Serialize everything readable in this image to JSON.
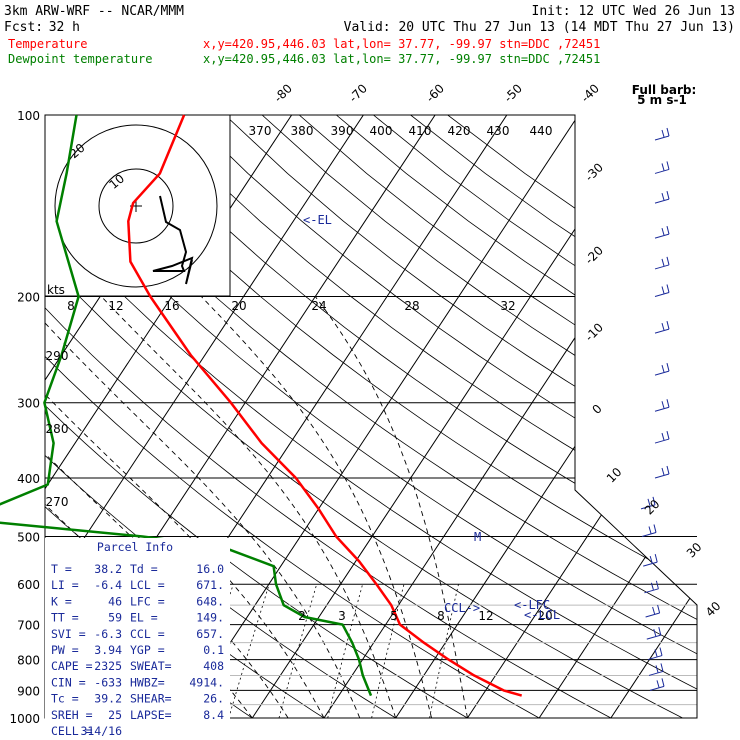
{
  "header": {
    "model": "3km ARW-WRF -- NCAR/MMM",
    "init": "Init: 12 UTC Wed 26 Jun 13",
    "fcst_label": "Fcst:",
    "fcst_value": "32 h",
    "valid": "Valid: 20 UTC Thu 27 Jun 13 (14 MDT Thu 27 Jun 13)",
    "line_temp_name": "Temperature",
    "line_temp_info": "x,y=420.95,446.03   lat,lon= 37.77, -99.97   stn=DDC ,72451",
    "line_dew_name": "Dewpoint temperature",
    "line_dew_info": "x,y=420.95,446.03   lat,lon= 37.77, -99.97   stn=DDC ,72451"
  },
  "barb_legend": {
    "line1": "Full barb:",
    "line2": "5 m s-1"
  },
  "hodograph": {
    "kts_label": "kts",
    "ring_label": "20",
    "inner_label": "10"
  },
  "annotations": {
    "el": "<-EL",
    "ccl": "CCL->",
    "lfc": "<-LFC",
    "lcl": "<-LCL",
    "m_mark": "M"
  },
  "parcel_info": {
    "title": "Parcel Info",
    "rows": [
      [
        "T  =",
        "38.2",
        "Td =",
        "16.0"
      ],
      [
        "LI =",
        "-6.4",
        "LCL =",
        "671."
      ],
      [
        "K  =",
        "46",
        "LFC =",
        "648."
      ],
      [
        "TT =",
        "59",
        "EL =",
        "149."
      ],
      [
        "SVI =",
        "-6.3",
        "CCL =",
        "657."
      ],
      [
        "PW =",
        "3.94",
        "YGP =",
        "0.1"
      ],
      [
        "CAPE =",
        "2325",
        "SWEAT=",
        "408"
      ],
      [
        "CIN =",
        "-633",
        "HWBZ=",
        "4914."
      ],
      [
        "Tc =",
        "39.2",
        "SHEAR=",
        "26."
      ],
      [
        "SREH =",
        "25",
        "LAPSE=",
        "8.4"
      ],
      [
        "CELL =",
        "314/16",
        "",
        ""
      ]
    ]
  },
  "colors": {
    "temperature": "#ff0000",
    "dewpoint": "#008000",
    "parcel_text": "#1a2a9a",
    "grid": "#000000"
  },
  "chart_data": {
    "type": "line",
    "chart_kind": "skew-T log-P diagram",
    "y_axis": "pressure (hPa), log scale, inverted",
    "pressure_levels": [
      100,
      200,
      300,
      400,
      500,
      600,
      700,
      800,
      900,
      1000
    ],
    "pressure_tick_labels": [
      "100",
      "200",
      "300",
      "400",
      "500",
      "600",
      "700",
      "800",
      "900",
      "1000"
    ],
    "ylim": [
      1000,
      100
    ],
    "isotherm_labels": [
      "-80",
      "-70",
      "-60",
      "-50",
      "-40",
      "-30",
      "-20",
      "-10",
      "0",
      "10",
      "20",
      "30",
      "40"
    ],
    "isotherm_values": [
      -80,
      -70,
      -60,
      -50,
      -40,
      -30,
      -20,
      -10,
      0,
      10,
      20,
      30,
      40
    ],
    "theta_top_labels": [
      "370",
      "380",
      "390",
      "400",
      "410",
      "420",
      "430",
      "440"
    ],
    "theta_left_labels": [
      "290",
      "280",
      "270"
    ],
    "mixing_ratio_labels_upper": [
      "8",
      "12",
      "16",
      "20",
      "24",
      "28",
      "32"
    ],
    "mixing_ratio_labels_lower": [
      "2",
      "3",
      "5",
      "8",
      "12",
      "20"
    ],
    "series": [
      {
        "name": "Temperature",
        "color": "#ff0000",
        "points": [
          {
            "p": 918,
            "t": 35.5
          },
          {
            "p": 900,
            "t": 32.5
          },
          {
            "p": 850,
            "t": 27.0
          },
          {
            "p": 800,
            "t": 22.0
          },
          {
            "p": 750,
            "t": 17.0
          },
          {
            "p": 700,
            "t": 12.0
          },
          {
            "p": 650,
            "t": 9.0
          },
          {
            "p": 600,
            "t": 5.0
          },
          {
            "p": 550,
            "t": 0.5
          },
          {
            "p": 500,
            "t": -5.0
          },
          {
            "p": 450,
            "t": -10.0
          },
          {
            "p": 400,
            "t": -16.0
          },
          {
            "p": 350,
            "t": -24.0
          },
          {
            "p": 300,
            "t": -32.0
          },
          {
            "p": 250,
            "t": -42.0
          },
          {
            "p": 200,
            "t": -53.0
          },
          {
            "p": 175,
            "t": -59.0
          },
          {
            "p": 150,
            "t": -63.0
          },
          {
            "p": 140,
            "t": -64.0
          },
          {
            "p": 125,
            "t": -63.0
          },
          {
            "p": 100,
            "t": -65.0
          }
        ]
      },
      {
        "name": "Dewpoint temperature",
        "color": "#008000",
        "points": [
          {
            "p": 918,
            "t": 14.5
          },
          {
            "p": 850,
            "t": 11.5
          },
          {
            "p": 800,
            "t": 9.5
          },
          {
            "p": 750,
            "t": 7.0
          },
          {
            "p": 700,
            "t": 4.0
          },
          {
            "p": 680,
            "t": -2.0
          },
          {
            "p": 650,
            "t": -6.0
          },
          {
            "p": 600,
            "t": -9.0
          },
          {
            "p": 560,
            "t": -11.0
          },
          {
            "p": 520,
            "t": -20.0
          },
          {
            "p": 500,
            "t": -32.0
          },
          {
            "p": 470,
            "t": -57.0
          },
          {
            "p": 450,
            "t": -56.0
          },
          {
            "p": 410,
            "t": -50.0
          },
          {
            "p": 350,
            "t": -53.0
          },
          {
            "p": 300,
            "t": -58.0
          },
          {
            "p": 250,
            "t": -60.0
          },
          {
            "p": 200,
            "t": -63.0
          },
          {
            "p": 150,
            "t": -73.0
          },
          {
            "p": 125,
            "t": -76.0
          },
          {
            "p": 100,
            "t": -80.0
          }
        ]
      }
    ],
    "xlim_T_at_1000hPa": [
      -28.9,
      45
    ],
    "wind_barbs_levels_hPa": [
      110,
      125,
      140,
      160,
      180,
      200,
      230,
      270,
      310,
      350,
      400,
      450,
      500,
      560,
      620,
      680,
      740,
      800,
      850,
      900
    ]
  }
}
